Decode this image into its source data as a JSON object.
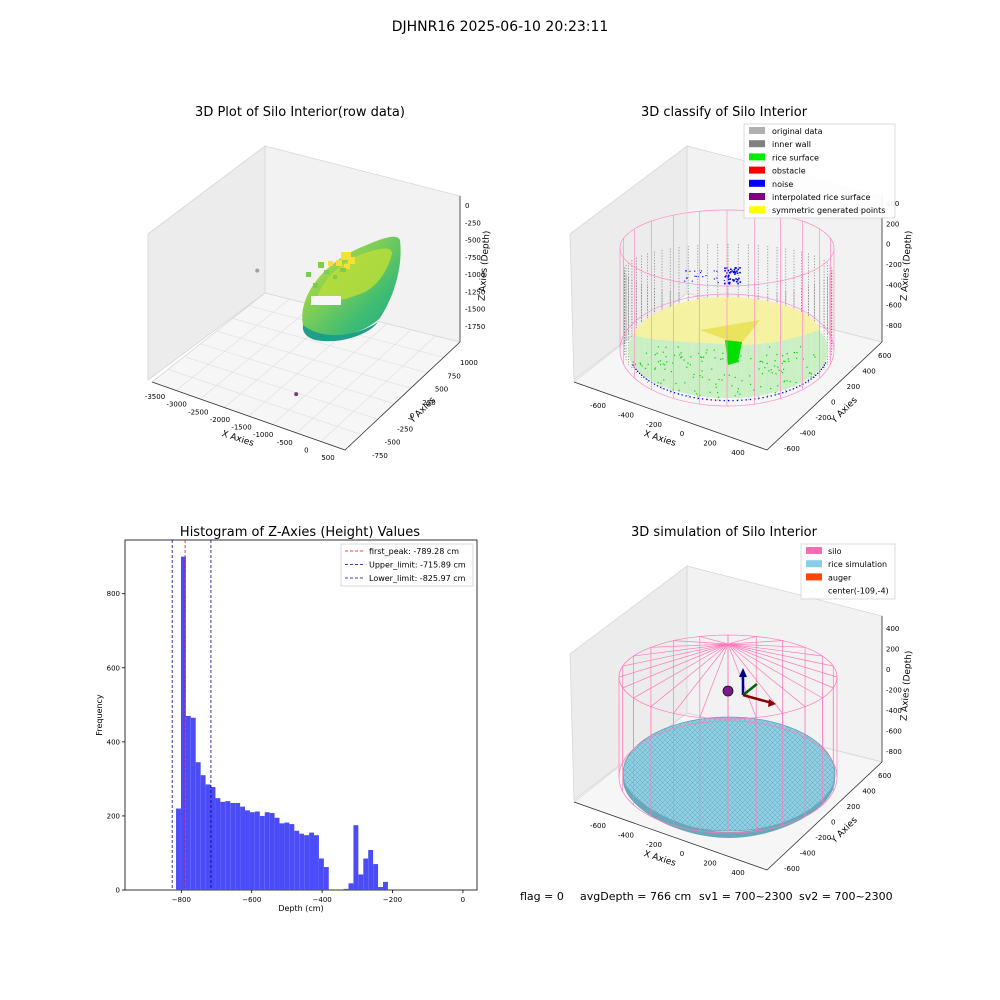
{
  "figure": {
    "title": "DJHNR16 2025-06-10 20:23:11"
  },
  "footer": {
    "flag": "flag = 0",
    "avg_depth": "avgDepth = 766 cm",
    "sv1": "sv1 = 700~2300",
    "sv2": "sv2 = 700~2300"
  },
  "chart_data": [
    {
      "type": "scatter",
      "title": "3D Plot of Silo Interior(row data)",
      "xlabel": "X Axies",
      "ylabel": "Y Axies",
      "zlabel": "Z Axies (Depth)",
      "x_ticks": [
        "-3500",
        "-3000",
        "-2500",
        "-2000",
        "-1500",
        "-1000",
        "-500",
        "0",
        "500"
      ],
      "y_ticks": [
        "-750",
        "-500",
        "-250",
        "0",
        "250",
        "500",
        "750",
        "1000"
      ],
      "z_ticks": [
        "0",
        "-250",
        "-500",
        "-750",
        "-1000",
        "-1250",
        "-1500",
        "-1750"
      ],
      "xlim": [
        -3600,
        600
      ],
      "ylim": [
        -800,
        1200
      ],
      "zlim": [
        -1900,
        100
      ],
      "outliers": [
        {
          "x": -3400,
          "y": 900,
          "z": -1300,
          "color": "#a0a0a0"
        },
        {
          "x": -1200,
          "y": -200,
          "z": -1900,
          "color": "#7a3a78"
        }
      ],
      "colormap": [
        "#f3e52a",
        "#8bd24f",
        "#3fbc73",
        "#21a685"
      ]
    },
    {
      "type": "scatter",
      "title": "3D classify of Silo Interior",
      "xlabel": "X Axies",
      "ylabel": "Y Axies",
      "zlabel": "Z Axies (Depth)",
      "x_ticks": [
        "-600",
        "-400",
        "-200",
        "0",
        "200",
        "400"
      ],
      "y_ticks": [
        "-600",
        "-400",
        "-200",
        "0",
        "200",
        "400",
        "600"
      ],
      "z_ticks": [
        "400",
        "200",
        "0",
        "-200",
        "-400",
        "-600",
        "-800"
      ],
      "legend": [
        {
          "label": "original data",
          "color": "#b0b0b0"
        },
        {
          "label": "inner wall",
          "color": "#808080"
        },
        {
          "label": "rice surface",
          "color": "#00ee00"
        },
        {
          "label": "obstacle",
          "color": "#ff0000"
        },
        {
          "label": "noise",
          "color": "#0000ff"
        },
        {
          "label": "interpolated rice surface",
          "color": "#800080"
        },
        {
          "label": "symmetric generated points",
          "color": "#ffff00"
        }
      ],
      "legend_position": "top-right"
    },
    {
      "type": "bar",
      "title": "Histogram of Z-Axies (Height) Values",
      "xlabel": "Depth (cm)",
      "ylabel": "Frequency",
      "xlim": [
        -960,
        40
      ],
      "ylim": [
        0,
        945
      ],
      "x_ticks": [
        -800,
        -600,
        -400,
        -200,
        0
      ],
      "y_ticks": [
        0,
        200,
        400,
        600,
        800
      ],
      "bin_width": 13.9,
      "bins": [
        {
          "x0": -815,
          "v": 220
        },
        {
          "x0": -801,
          "v": 900
        },
        {
          "x0": -787,
          "v": 470
        },
        {
          "x0": -773,
          "v": 465
        },
        {
          "x0": -759,
          "v": 345
        },
        {
          "x0": -745,
          "v": 310
        },
        {
          "x0": -731,
          "v": 285
        },
        {
          "x0": -717,
          "v": 278
        },
        {
          "x0": -703,
          "v": 248
        },
        {
          "x0": -689,
          "v": 238
        },
        {
          "x0": -675,
          "v": 240
        },
        {
          "x0": -661,
          "v": 235
        },
        {
          "x0": -647,
          "v": 235
        },
        {
          "x0": -633,
          "v": 225
        },
        {
          "x0": -619,
          "v": 215
        },
        {
          "x0": -605,
          "v": 210
        },
        {
          "x0": -591,
          "v": 212
        },
        {
          "x0": -577,
          "v": 200
        },
        {
          "x0": -563,
          "v": 210
        },
        {
          "x0": -549,
          "v": 208
        },
        {
          "x0": -535,
          "v": 195
        },
        {
          "x0": -521,
          "v": 180
        },
        {
          "x0": -507,
          "v": 182
        },
        {
          "x0": -493,
          "v": 178
        },
        {
          "x0": -479,
          "v": 160
        },
        {
          "x0": -465,
          "v": 152
        },
        {
          "x0": -451,
          "v": 148
        },
        {
          "x0": -437,
          "v": 155
        },
        {
          "x0": -423,
          "v": 148
        },
        {
          "x0": -409,
          "v": 85
        },
        {
          "x0": -395,
          "v": 62
        },
        {
          "x0": -381,
          "v": 0
        },
        {
          "x0": -367,
          "v": 0
        },
        {
          "x0": -353,
          "v": 0
        },
        {
          "x0": -339,
          "v": 3
        },
        {
          "x0": -325,
          "v": 18
        },
        {
          "x0": -311,
          "v": 175
        },
        {
          "x0": -297,
          "v": 42
        },
        {
          "x0": -283,
          "v": 85
        },
        {
          "x0": -269,
          "v": 108
        },
        {
          "x0": -255,
          "v": 70
        },
        {
          "x0": -241,
          "v": 8
        },
        {
          "x0": -227,
          "v": 22
        }
      ],
      "vlines": [
        {
          "label": "first_peak: -789.28 cm",
          "x": -789.28,
          "color": "#ff0000"
        },
        {
          "label": "Upper_limit: -715.89 cm",
          "x": -715.89,
          "color": "#00008b"
        },
        {
          "label": "Lower_limit: -825.97 cm",
          "x": -825.97,
          "color": "#00008b"
        }
      ],
      "bar_color": "#4b4bf8",
      "legend_position": "top-right"
    },
    {
      "type": "scatter",
      "title": "3D simulation of Silo Interior",
      "xlabel": "X Axies",
      "ylabel": "Y Axies",
      "zlabel": "Z Axies (Depth)",
      "x_ticks": [
        "-600",
        "-400",
        "-200",
        "0",
        "200",
        "400"
      ],
      "y_ticks": [
        "-600",
        "-400",
        "-200",
        "0",
        "200",
        "400",
        "600"
      ],
      "z_ticks": [
        "400",
        "200",
        "0",
        "-200",
        "-400",
        "-600",
        "-800"
      ],
      "legend": [
        {
          "label": "silo",
          "color": "#ff69b4"
        },
        {
          "label": "rice simulation",
          "color": "#87ceeb"
        },
        {
          "label": "auger",
          "color": "#ff4500"
        },
        {
          "label": "center(-109,-4)",
          "color": "none"
        }
      ],
      "legend_position": "top-right"
    }
  ]
}
